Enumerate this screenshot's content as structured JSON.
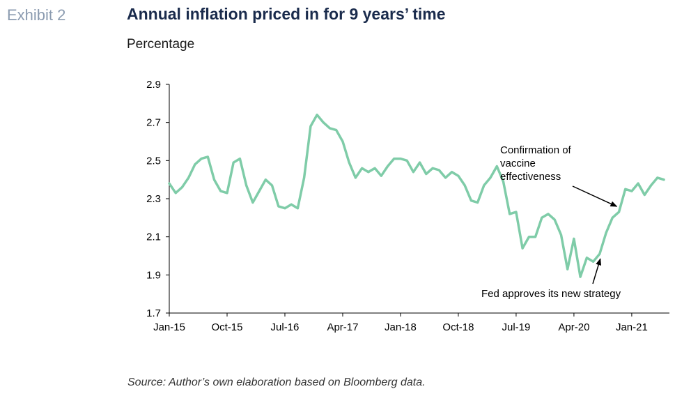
{
  "header": {
    "exhibit": "Exhibit 2",
    "title": "Annual inflation priced in for 9 years’ time",
    "subtitle": "Percentage"
  },
  "source": "Source: Author’s own elaboration based on Bloomberg data.",
  "chart_data": {
    "type": "line",
    "title": "Annual inflation priced in for 9 years’ time",
    "ylabel": "Percentage",
    "xlabel": "",
    "ylim": [
      1.7,
      2.9
    ],
    "yticks": [
      1.7,
      1.9,
      2.1,
      2.3,
      2.5,
      2.7,
      2.9
    ],
    "xticks": [
      "Jan-15",
      "Oct-15",
      "Jul-16",
      "Apr-17",
      "Jan-18",
      "Oct-18",
      "Jul-19",
      "Apr-20",
      "Jan-21"
    ],
    "grid": false,
    "line_color": "#7fcca8",
    "series": [
      {
        "x": [
          "Jan-15",
          "Feb-15",
          "Mar-15",
          "Apr-15",
          "May-15",
          "Jun-15",
          "Jul-15",
          "Aug-15",
          "Sep-15",
          "Oct-15",
          "Nov-15",
          "Dec-15",
          "Jan-16",
          "Feb-16",
          "Mar-16",
          "Apr-16",
          "May-16",
          "Jun-16",
          "Jul-16",
          "Aug-16",
          "Sep-16",
          "Oct-16",
          "Nov-16",
          "Dec-16",
          "Jan-17",
          "Feb-17",
          "Mar-17",
          "Apr-17",
          "May-17",
          "Jun-17",
          "Jul-17",
          "Aug-17",
          "Sep-17",
          "Oct-17",
          "Nov-17",
          "Dec-17",
          "Jan-18",
          "Feb-18",
          "Mar-18",
          "Apr-18",
          "May-18",
          "Jun-18",
          "Jul-18",
          "Aug-18",
          "Sep-18",
          "Oct-18",
          "Nov-18",
          "Dec-18",
          "Jan-19",
          "Feb-19",
          "Mar-19",
          "Apr-19",
          "May-19",
          "Jun-19",
          "Jul-19",
          "Aug-19",
          "Sep-19",
          "Oct-19",
          "Nov-19",
          "Dec-19",
          "Jan-20",
          "Feb-20",
          "Mar-20",
          "Apr-20",
          "May-20",
          "Jun-20",
          "Jul-20",
          "Aug-20",
          "Sep-20",
          "Oct-20",
          "Nov-20",
          "Dec-20",
          "Jan-21",
          "Feb-21",
          "Mar-21",
          "Apr-21",
          "May-21",
          "Jun-21"
        ],
        "values": [
          2.38,
          2.33,
          2.36,
          2.41,
          2.48,
          2.51,
          2.52,
          2.4,
          2.34,
          2.33,
          2.49,
          2.51,
          2.37,
          2.28,
          2.34,
          2.4,
          2.37,
          2.26,
          2.25,
          2.27,
          2.25,
          2.41,
          2.68,
          2.74,
          2.7,
          2.67,
          2.66,
          2.6,
          2.49,
          2.41,
          2.46,
          2.44,
          2.46,
          2.42,
          2.47,
          2.51,
          2.51,
          2.5,
          2.44,
          2.49,
          2.43,
          2.46,
          2.45,
          2.41,
          2.44,
          2.42,
          2.37,
          2.29,
          2.28,
          2.37,
          2.41,
          2.47,
          2.39,
          2.22,
          2.23,
          2.04,
          2.1,
          2.1,
          2.2,
          2.22,
          2.19,
          2.11,
          1.93,
          2.09,
          1.89,
          1.99,
          1.97,
          2.01,
          2.12,
          2.2,
          2.23,
          2.35,
          2.34,
          2.38,
          2.32,
          2.37,
          2.41,
          2.4
        ]
      }
    ],
    "annotations": [
      {
        "lines": [
          "Confirmation of",
          "vaccine",
          "effectiveness"
        ],
        "points_to": "Nov-20"
      },
      {
        "lines": [
          "Fed approves its new strategy"
        ],
        "points_to": "Aug-20"
      }
    ]
  }
}
